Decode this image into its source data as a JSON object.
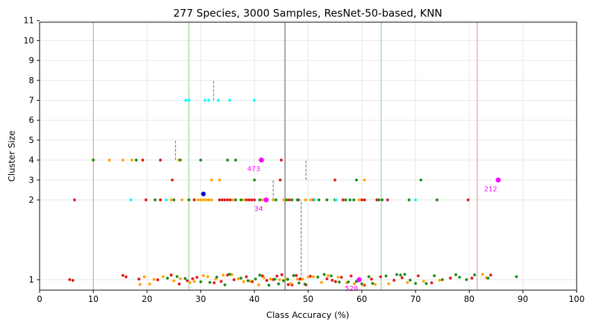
{
  "chart_data": {
    "type": "scatter",
    "title": "277 Species, 3000 Samples, ResNet-50-based, KNN",
    "xlabel": "Class Accuracy (%)",
    "ylabel": "Cluster Size",
    "xlim": [
      0,
      100
    ],
    "ylim": [
      0.87,
      11
    ],
    "y_scale": "nonlinear",
    "grid": true,
    "x_ticks": [
      "0",
      "10",
      "20",
      "30",
      "40",
      "50",
      "60",
      "70",
      "80",
      "90",
      "100"
    ],
    "y_ticks": [
      "1",
      "2",
      "3",
      "4",
      "5",
      "6",
      "7",
      "8",
      "9",
      "10",
      "11"
    ],
    "colors": {
      "red": "#e31a1c",
      "orange": "#ffa500",
      "green": "#1f8f1f",
      "cyan": "#00ffff",
      "blue": "#0000cc",
      "magenta": "#ff00ff",
      "mean_line": "#808080",
      "red_line": "#e88888",
      "green_line": "#88cc88"
    },
    "vertical_lines": [
      {
        "x": 10,
        "color": "red_line"
      },
      {
        "x": 27.8,
        "color": "green_line"
      },
      {
        "x": 45.7,
        "color": "mean_line"
      },
      {
        "x": 63.6,
        "color": "green_line"
      },
      {
        "x": 81.5,
        "color": "red_line"
      }
    ],
    "dashed_markers": [
      {
        "x": 32.4,
        "y_from": 7,
        "y_to": 8
      },
      {
        "x": 25.3,
        "y_from": 4,
        "y_to": 5
      },
      {
        "x": 49.6,
        "y_from": 3,
        "y_to": 4
      },
      {
        "x": 43.5,
        "y_from": 2,
        "y_to": 3
      },
      {
        "x": 48.7,
        "y_from": 1,
        "y_to": 2
      }
    ],
    "highlights": [
      {
        "x": 41.3,
        "y": 4,
        "label": "473"
      },
      {
        "x": 85.4,
        "y": 3,
        "label": "212"
      },
      {
        "x": 42.2,
        "y": 2,
        "label": "34"
      },
      {
        "x": 59.5,
        "y": 1,
        "label": "528"
      }
    ],
    "special_points": [
      {
        "x": 30.5,
        "y": 2.3,
        "color": "blue"
      }
    ],
    "points": {
      "y11": {
        "y": 1,
        "spread": 0.07,
        "red": [
          5.6,
          6.2,
          15.5,
          16.1,
          18.5,
          22,
          24.5,
          26,
          27.5,
          28.5,
          29.3,
          32.5,
          33.8,
          35,
          36.2,
          38.5,
          39.6,
          41.5,
          42.3,
          43.5,
          44.2,
          45.1,
          46.3,
          47,
          47.8,
          48.5,
          49.6,
          50.4,
          53.5,
          54.5,
          55.1,
          56.2,
          58,
          60.5,
          61.8,
          63.5,
          66,
          67.5,
          70.5,
          73,
          76.5,
          80.5,
          84.0
        ],
        "orange": [
          18.7,
          19.5,
          20.5,
          21.3,
          23,
          25,
          26.2,
          28,
          28.8,
          30.5,
          31.3,
          32.8,
          34.2,
          35.8,
          37,
          38,
          39.2,
          40.8,
          41.8,
          43,
          44.7,
          45.9,
          46.8,
          48,
          49,
          50,
          51,
          52.5,
          53.7,
          55.6,
          57.2,
          58.6,
          60.2,
          62.5,
          65,
          68.5,
          71.5,
          74.5,
          82.5,
          83.2
        ],
        "green": [
          23.8,
          25.6,
          27.1,
          30,
          31.7,
          33,
          34.5,
          35.4,
          37.5,
          38.8,
          40.2,
          41,
          42.7,
          43.8,
          44.5,
          45.4,
          46.2,
          47.3,
          48.3,
          49.4,
          51.8,
          53,
          54.3,
          55.8,
          57.5,
          59,
          60,
          61.3,
          62,
          64.5,
          66.5,
          67.2,
          68,
          69,
          70,
          72,
          73.5,
          75,
          77.5,
          78.2,
          79.5,
          81,
          83.5,
          88.8
        ]
      },
      "y2": {
        "y": 2,
        "spread": 0,
        "red": [
          6.5,
          19.8,
          22.5,
          28.8,
          33.5,
          34,
          34.5,
          35,
          35.5,
          38.5,
          39,
          39.5,
          40,
          46.5,
          48.2,
          51,
          56.5,
          60,
          60.5,
          62.8,
          64.8,
          79.8
        ],
        "orange": [
          24.5,
          26.5,
          29.5,
          30,
          30.5,
          31,
          31.5,
          32,
          36,
          38,
          41.5,
          43.5,
          45.5,
          49.5,
          50.5,
          59.5,
          74
        ],
        "green": [
          21.5,
          25,
          27.8,
          36.5,
          37.5,
          41,
          44,
          46,
          47,
          48,
          52,
          53.5,
          55,
          57,
          57.8,
          58.5,
          63.2,
          63.8,
          68.8,
          74
        ],
        "cyan": [
          17,
          23.6,
          51.2,
          55.2,
          70
        ]
      },
      "y3": {
        "y": 3,
        "spread": 0,
        "red": [
          24.7,
          44.8,
          55
        ],
        "orange": [
          32,
          33.5,
          60.5
        ],
        "green": [
          40,
          59,
          71
        ],
        "cyan": []
      },
      "y4": {
        "y": 4,
        "spread": 0,
        "red": [
          19.2,
          22.5,
          45
        ],
        "orange": [
          10,
          13,
          15.5,
          17.2,
          25.9,
          41.5
        ],
        "green": [
          10,
          18,
          26.2,
          30,
          35,
          36.5
        ],
        "cyan": []
      },
      "y7": {
        "y": 7,
        "spread": 0,
        "red": [],
        "orange": [],
        "green": [],
        "cyan": [
          27.2,
          27.8,
          30.8,
          31.5,
          33.3,
          35.4,
          40
        ]
      }
    }
  }
}
